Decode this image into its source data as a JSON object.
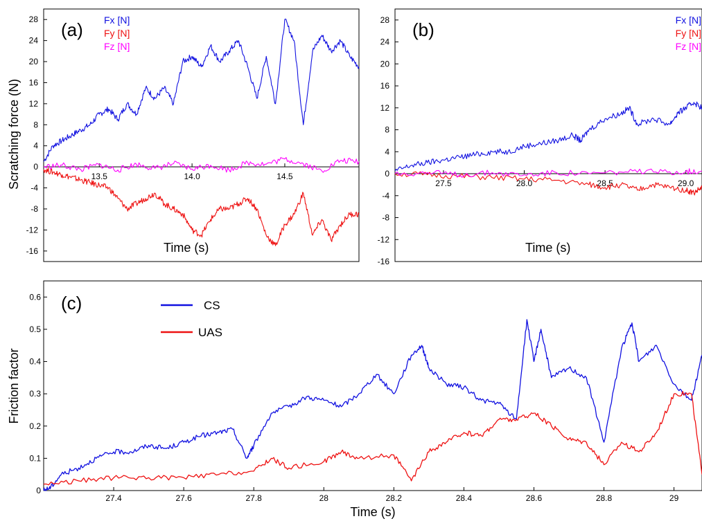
{
  "colors": {
    "fx": "#1010e0",
    "fy": "#ee1111",
    "fz": "#ff00ff",
    "cs": "#1010e0",
    "uas": "#ee1111"
  },
  "chart_data": [
    {
      "type": "line",
      "panel_label": "(a)",
      "ylabel": "Scratching force (N)",
      "xlabel": "Time (s)",
      "xlim": [
        13.2,
        14.9
      ],
      "ylim": [
        -18,
        30
      ],
      "yticks": [
        28,
        24,
        20,
        16,
        12,
        8,
        4,
        0,
        -4,
        -8,
        -12,
        -16
      ],
      "xticks": [
        13.5,
        14.0,
        14.5
      ],
      "xtick_labels": [
        "13.5",
        "14.0",
        "14.5"
      ],
      "legend": [
        "Fx [N]",
        "Fy [N]",
        "Fz [N]"
      ],
      "series": [
        {
          "name": "Fx [N]",
          "color_key": "fx",
          "x": [
            13.2,
            13.25,
            13.3,
            13.35,
            13.4,
            13.45,
            13.5,
            13.55,
            13.6,
            13.65,
            13.7,
            13.75,
            13.8,
            13.85,
            13.9,
            13.95,
            14.0,
            14.05,
            14.1,
            14.15,
            14.2,
            14.25,
            14.3,
            14.35,
            14.4,
            14.45,
            14.5,
            14.55,
            14.6,
            14.65,
            14.7,
            14.75,
            14.8,
            14.85,
            14.9
          ],
          "y": [
            1,
            4,
            5,
            6,
            7,
            8,
            10,
            11,
            9,
            12,
            10,
            15,
            13,
            15,
            12,
            20,
            21,
            19,
            23,
            20,
            22,
            24,
            19,
            13,
            21,
            12,
            28,
            24,
            8,
            22,
            25,
            22,
            24,
            21,
            19
          ]
        },
        {
          "name": "Fy [N]",
          "color_key": "fy",
          "x": [
            13.2,
            13.25,
            13.3,
            13.35,
            13.4,
            13.45,
            13.5,
            13.55,
            13.6,
            13.65,
            13.7,
            13.75,
            13.8,
            13.85,
            13.9,
            13.95,
            14.0,
            14.05,
            14.1,
            14.15,
            14.2,
            14.25,
            14.3,
            14.35,
            14.4,
            14.45,
            14.5,
            14.55,
            14.6,
            14.65,
            14.7,
            14.75,
            14.8,
            14.85,
            14.9
          ],
          "y": [
            -0.5,
            -1,
            -1.5,
            -2,
            -2.5,
            -3,
            -3.5,
            -4,
            -6,
            -8,
            -7,
            -6,
            -5,
            -7,
            -8,
            -9,
            -12,
            -13,
            -10,
            -8,
            -8,
            -7,
            -6,
            -8,
            -13,
            -15,
            -11,
            -9,
            -5,
            -13,
            -10,
            -14,
            -11,
            -9,
            -9
          ]
        },
        {
          "name": "Fz [N]",
          "color_key": "fz",
          "x": [
            13.2,
            13.3,
            13.4,
            13.5,
            13.6,
            13.7,
            13.8,
            13.9,
            14.0,
            14.1,
            14.2,
            14.3,
            14.4,
            14.5,
            14.6,
            14.7,
            14.8,
            14.9
          ],
          "y": [
            0,
            0.3,
            -0.5,
            0.4,
            -0.6,
            0.5,
            -0.3,
            0.6,
            -0.4,
            0.3,
            -0.6,
            0.8,
            0.5,
            1.5,
            0.6,
            -0.8,
            1.2,
            1
          ]
        }
      ]
    },
    {
      "type": "line",
      "panel_label": "(b)",
      "xlabel": "Time (s)",
      "xlim": [
        27.2,
        29.1
      ],
      "ylim": [
        -16,
        30
      ],
      "yticks": [
        28,
        24,
        20,
        16,
        12,
        8,
        4,
        0,
        -4,
        -8,
        -12,
        -16
      ],
      "xticks": [
        27.5,
        28.0,
        28.5,
        29.0
      ],
      "xtick_labels": [
        "27.5",
        "28.0",
        "28.5",
        "29.0"
      ],
      "legend": [
        "Fx [N]",
        "Fy [N]",
        "Fz [N]"
      ],
      "series": [
        {
          "name": "Fx [N]",
          "color_key": "fx",
          "x": [
            27.2,
            27.3,
            27.4,
            27.5,
            27.6,
            27.7,
            27.8,
            27.9,
            28.0,
            28.1,
            28.2,
            28.3,
            28.35,
            28.4,
            28.5,
            28.6,
            28.65,
            28.7,
            28.8,
            28.9,
            28.95,
            29.0,
            29.05,
            29.1
          ],
          "y": [
            0.5,
            1.5,
            2,
            2.5,
            3,
            3.5,
            4,
            4,
            5,
            5.5,
            6,
            7,
            6,
            8,
            10,
            11,
            12,
            9,
            10,
            9,
            11,
            12,
            13,
            12
          ]
        },
        {
          "name": "Fy [N]",
          "color_key": "fy",
          "x": [
            27.2,
            27.4,
            27.6,
            27.8,
            28.0,
            28.2,
            28.4,
            28.5,
            28.6,
            28.7,
            28.8,
            28.9,
            29.0,
            29.05,
            29.1
          ],
          "y": [
            0,
            -0.2,
            -0.5,
            -0.7,
            -1,
            -1.2,
            -2,
            -2.5,
            -2,
            -3,
            -2,
            -2.5,
            -3,
            -3.5,
            -2.5
          ]
        },
        {
          "name": "Fz [N]",
          "color_key": "fz",
          "x": [
            27.2,
            27.4,
            27.6,
            27.8,
            28.0,
            28.2,
            28.4,
            28.6,
            28.8,
            29.0,
            29.1
          ],
          "y": [
            0,
            0.2,
            -0.2,
            0.2,
            -0.2,
            0.2,
            0,
            0.3,
            0.3,
            0.4,
            0.5
          ]
        }
      ]
    },
    {
      "type": "line",
      "panel_label": "(c)",
      "xlabel": "Time (s)",
      "ylabel": "Friction factor",
      "xlim": [
        27.2,
        29.08
      ],
      "ylim": [
        0,
        0.65
      ],
      "yticks": [
        0,
        0.1,
        0.2,
        0.3,
        0.4,
        0.5,
        0.6
      ],
      "ytick_labels": [
        "0",
        "0.1",
        "0.2",
        "0.3",
        "0.4",
        "0.5",
        "0.6"
      ],
      "xticks": [
        27.4,
        27.6,
        27.8,
        28,
        28.2,
        28.4,
        28.6,
        28.8,
        29
      ],
      "xtick_labels": [
        "27.4",
        "27.6",
        "27.8",
        "28",
        "28.2",
        "28.4",
        "28.6",
        "28.8",
        "29"
      ],
      "legend": [
        "CS",
        "UAS"
      ],
      "series": [
        {
          "name": "CS",
          "color_key": "cs",
          "x": [
            27.2,
            27.22,
            27.25,
            27.3,
            27.35,
            27.4,
            27.45,
            27.5,
            27.55,
            27.6,
            27.65,
            27.7,
            27.74,
            27.78,
            27.8,
            27.85,
            27.9,
            27.95,
            28.0,
            28.05,
            28.1,
            28.15,
            28.2,
            28.25,
            28.28,
            28.3,
            28.35,
            28.4,
            28.45,
            28.5,
            28.55,
            28.58,
            28.6,
            28.62,
            28.65,
            28.7,
            28.75,
            28.8,
            28.85,
            28.88,
            28.9,
            28.95,
            29.0,
            29.05,
            29.08
          ],
          "y": [
            0,
            0.01,
            0.05,
            0.07,
            0.1,
            0.12,
            0.12,
            0.14,
            0.13,
            0.15,
            0.17,
            0.18,
            0.19,
            0.1,
            0.14,
            0.24,
            0.26,
            0.29,
            0.28,
            0.26,
            0.3,
            0.36,
            0.3,
            0.42,
            0.45,
            0.38,
            0.33,
            0.32,
            0.28,
            0.27,
            0.22,
            0.53,
            0.4,
            0.5,
            0.35,
            0.38,
            0.35,
            0.15,
            0.44,
            0.52,
            0.4,
            0.45,
            0.33,
            0.28,
            0.42
          ]
        },
        {
          "name": "UAS",
          "color_key": "uas",
          "x": [
            27.2,
            27.3,
            27.4,
            27.5,
            27.6,
            27.7,
            27.8,
            27.85,
            27.9,
            28.0,
            28.05,
            28.1,
            28.2,
            28.25,
            28.3,
            28.35,
            28.4,
            28.45,
            28.5,
            28.55,
            28.6,
            28.65,
            28.7,
            28.75,
            28.8,
            28.85,
            28.9,
            28.95,
            29.0,
            29.05,
            29.08
          ],
          "y": [
            0.02,
            0.03,
            0.04,
            0.04,
            0.04,
            0.05,
            0.06,
            0.1,
            0.07,
            0.09,
            0.12,
            0.1,
            0.11,
            0.03,
            0.12,
            0.15,
            0.18,
            0.17,
            0.22,
            0.22,
            0.24,
            0.2,
            0.16,
            0.15,
            0.08,
            0.15,
            0.12,
            0.18,
            0.3,
            0.3,
            0.05
          ]
        }
      ]
    }
  ]
}
